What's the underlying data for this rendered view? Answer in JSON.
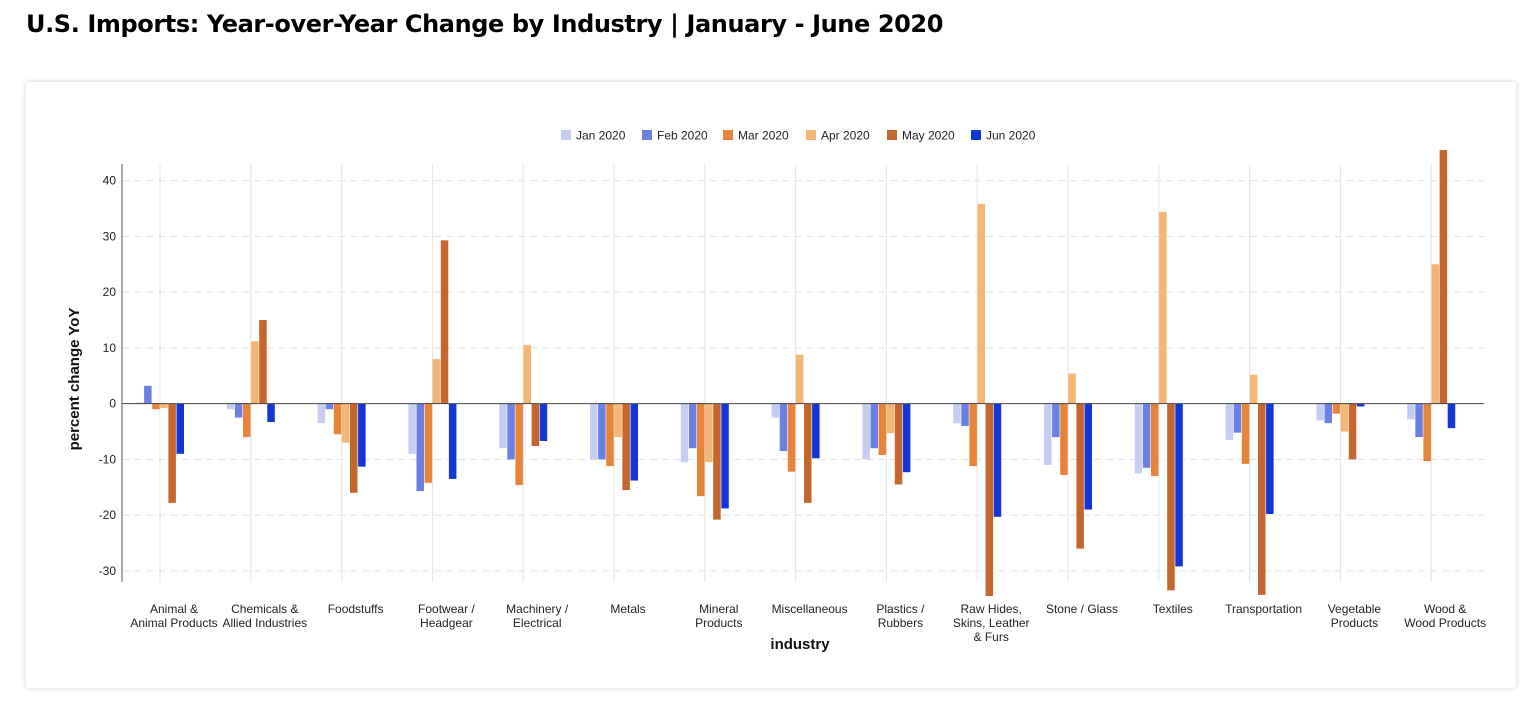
{
  "page": {
    "title": "U.S. Imports: Year-over-Year Change by Industry | January - June 2020"
  },
  "chart_data": {
    "type": "bar",
    "title": "U.S. Imports: Year-over-Year Change by Industry | January - June 2020",
    "xlabel": "industry",
    "ylabel": "percent change YoY",
    "ylim": [
      -32,
      43
    ],
    "yticks": [
      40,
      30,
      20,
      10,
      0,
      -10,
      -20,
      -30
    ],
    "grid": true,
    "legend_position": "top-center",
    "categories": [
      [
        "Animal &",
        "Animal Products"
      ],
      [
        "Chemicals &",
        "Allied Industries"
      ],
      [
        "Foodstuffs"
      ],
      [
        "Footwear /",
        "Headgear"
      ],
      [
        "Machinery /",
        "Electrical"
      ],
      [
        "Metals"
      ],
      [
        "Mineral",
        "Products"
      ],
      [
        "Miscellaneous"
      ],
      [
        "Plastics /",
        "Rubbers"
      ],
      [
        "Raw Hides,",
        "Skins, Leather",
        "& Furs"
      ],
      [
        "Stone / Glass"
      ],
      [
        "Textiles"
      ],
      [
        "Transportation"
      ],
      [
        "Vegetable",
        "Products"
      ],
      [
        "Wood &",
        "Wood Products"
      ]
    ],
    "series": [
      {
        "name": "Jan 2020",
        "color": "#c5cdf3",
        "values": [
          0.2,
          -1.0,
          -3.5,
          -9.0,
          -8.0,
          -10.0,
          -10.5,
          -2.5,
          -10.0,
          -3.5,
          -11.0,
          -12.5,
          -6.5,
          -3.0,
          -2.8
        ]
      },
      {
        "name": "Feb 2020",
        "color": "#6b80e3",
        "values": [
          3.2,
          -2.5,
          -1.0,
          -15.7,
          -10.0,
          -10.0,
          -8.0,
          -8.5,
          -8.0,
          -4.0,
          -6.0,
          -11.5,
          -5.2,
          -3.5,
          -6.0
        ]
      },
      {
        "name": "Mar 2020",
        "color": "#e8843a",
        "values": [
          -1.0,
          -6.0,
          -5.5,
          -14.2,
          -14.6,
          -11.2,
          -16.6,
          -12.2,
          -9.2,
          -11.2,
          -12.8,
          -13.0,
          -10.8,
          -1.8,
          -10.3
        ]
      },
      {
        "name": "Apr 2020",
        "color": "#f3b675",
        "values": [
          -0.8,
          11.2,
          -7.0,
          8.0,
          10.5,
          -6.0,
          -10.5,
          8.8,
          -5.3,
          35.8,
          5.4,
          34.4,
          5.2,
          -5.0,
          25.0
        ]
      },
      {
        "name": "May 2020",
        "color": "#c4662d",
        "values": [
          -17.8,
          15.0,
          -16.0,
          29.3,
          -7.6,
          -15.5,
          -20.8,
          -17.8,
          -14.5,
          -34.5,
          -26.0,
          -33.5,
          -34.3,
          -10.0,
          45.5
        ]
      },
      {
        "name": "Jun 2020",
        "color": "#1336d9",
        "values": [
          -9.0,
          -3.3,
          -11.3,
          -13.5,
          -6.7,
          -13.8,
          -18.8,
          -9.8,
          -12.3,
          -20.3,
          -19.0,
          -29.2,
          -19.8,
          -0.5,
          -4.4
        ]
      }
    ]
  }
}
